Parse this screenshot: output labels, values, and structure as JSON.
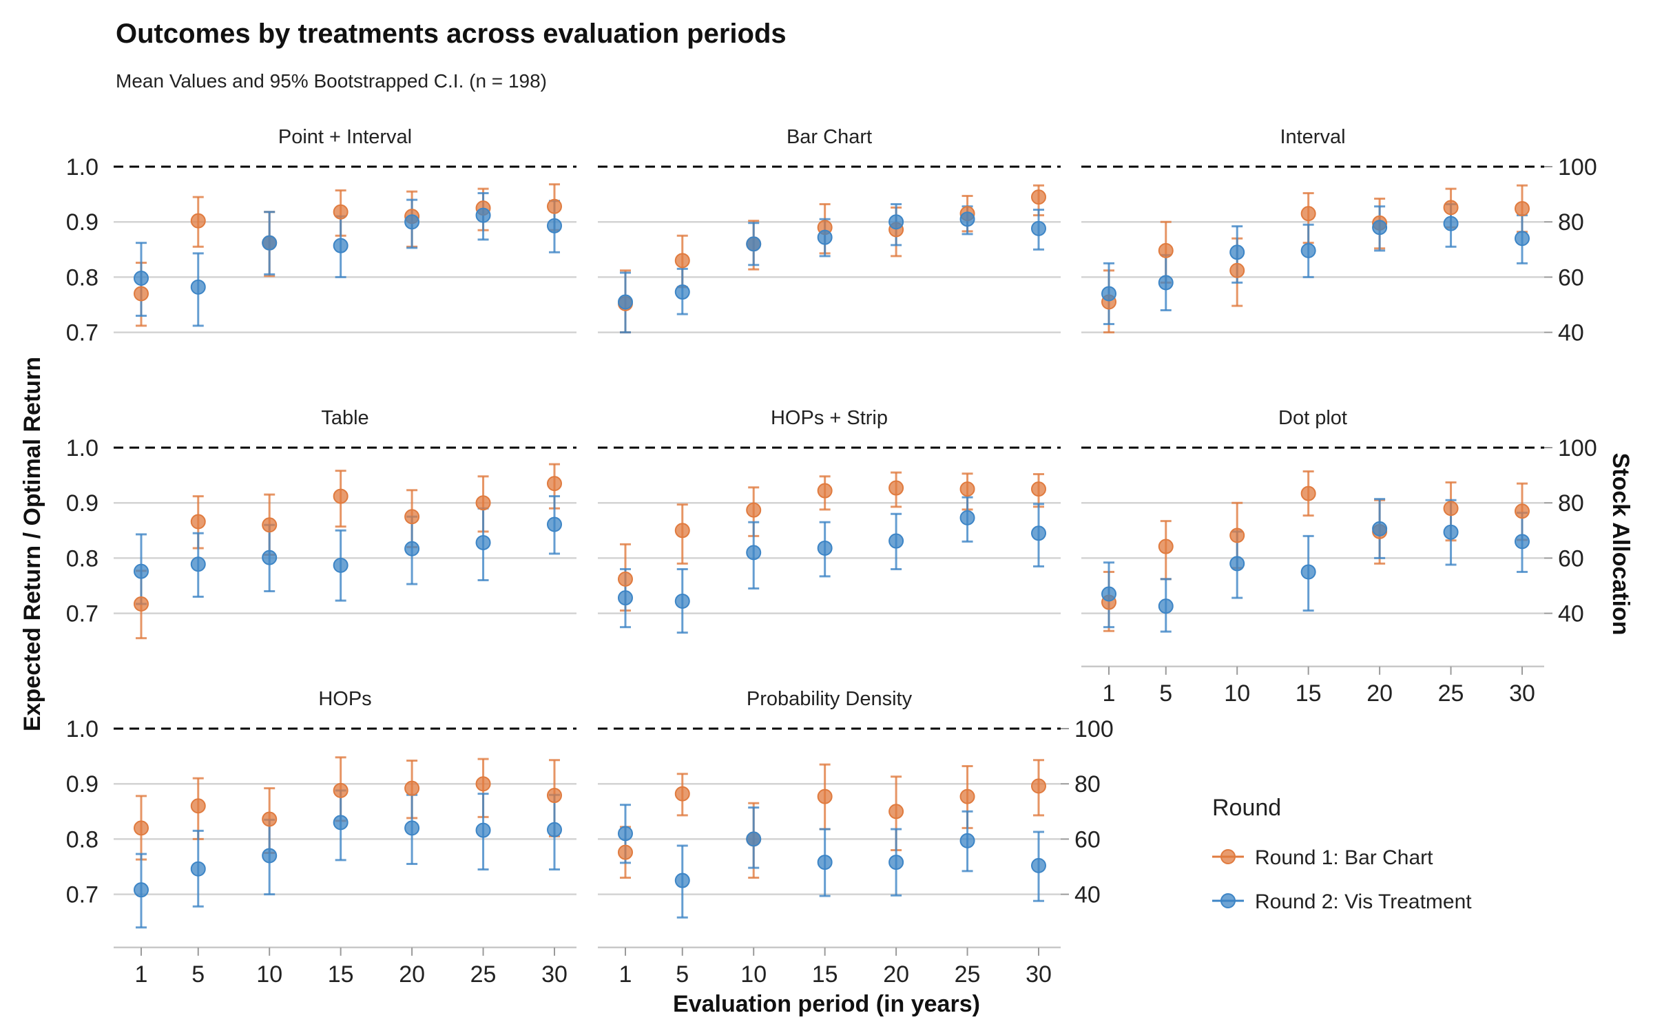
{
  "chart_data": {
    "type": "scatter",
    "title": "Outcomes by treatments across evaluation periods",
    "subtitle": "Mean Values and 95% Bootstrapped C.I. (n = 198)",
    "xlabel": "Evaluation period (in years)",
    "ylabel": "Expected Return / Optimal Return",
    "y2label": "Stock Allocation",
    "x": [
      1,
      5,
      10,
      15,
      20,
      25,
      30
    ],
    "x_tick_labels": [
      "1",
      "5",
      "10",
      "15",
      "20",
      "25",
      "30"
    ],
    "ylim": [
      0.6,
      1.02
    ],
    "y_ticks": [
      0.7,
      0.8,
      0.9,
      1.0
    ],
    "y_tick_labels": [
      "0.7",
      "0.8",
      "0.9",
      "1.0"
    ],
    "y2_ticks": [
      40,
      60,
      80,
      100
    ],
    "y2_tick_labels": [
      "40",
      "60",
      "80",
      "100"
    ],
    "reference_line": 1.0,
    "grid": true,
    "legend": {
      "title": "Round",
      "position": "right",
      "entries": [
        "Round 1: Bar Chart",
        "Round 2: Vis Treatment"
      ]
    },
    "colors": {
      "round1": "#E07B3F",
      "round2": "#3D85C6",
      "reference": "#000000",
      "grid": "#D3D3D3"
    },
    "panels": [
      {
        "name": "Point + Interval",
        "round1": {
          "y": [
            0.77,
            0.902,
            0.862,
            0.918,
            0.91,
            0.925,
            0.928
          ],
          "lo": [
            0.712,
            0.855,
            0.802,
            0.875,
            0.855,
            0.885,
            0.885
          ],
          "hi": [
            0.826,
            0.945,
            0.918,
            0.957,
            0.955,
            0.96,
            0.968
          ]
        },
        "round2": {
          "y": [
            0.798,
            0.782,
            0.862,
            0.857,
            0.9,
            0.912,
            0.893
          ],
          "lo": [
            0.73,
            0.712,
            0.805,
            0.8,
            0.853,
            0.868,
            0.845
          ],
          "hi": [
            0.862,
            0.843,
            0.918,
            0.91,
            0.94,
            0.952,
            0.938
          ]
        }
      },
      {
        "name": "Bar Chart",
        "round1": {
          "y": [
            0.752,
            0.83,
            0.86,
            0.89,
            0.886,
            0.915,
            0.945
          ],
          "lo": [
            0.7,
            0.782,
            0.814,
            0.843,
            0.838,
            0.883,
            0.912
          ],
          "hi": [
            0.812,
            0.875,
            0.902,
            0.932,
            0.926,
            0.947,
            0.966
          ]
        },
        "round2": {
          "y": [
            0.755,
            0.773,
            0.86,
            0.872,
            0.9,
            0.905,
            0.888
          ],
          "lo": [
            0.7,
            0.733,
            0.822,
            0.838,
            0.858,
            0.878,
            0.85
          ],
          "hi": [
            0.808,
            0.815,
            0.898,
            0.905,
            0.932,
            0.928,
            0.922
          ]
        }
      },
      {
        "name": "Interval",
        "round1": {
          "y": [
            0.755,
            0.848,
            0.812,
            0.915,
            0.898,
            0.926,
            0.924
          ],
          "lo": [
            0.7,
            0.79,
            0.748,
            0.862,
            0.852,
            0.89,
            0.882
          ],
          "hi": [
            0.812,
            0.9,
            0.87,
            0.952,
            0.942,
            0.96,
            0.966
          ]
        },
        "round2": {
          "y": [
            0.77,
            0.79,
            0.845,
            0.848,
            0.89,
            0.897,
            0.87
          ],
          "lo": [
            0.715,
            0.74,
            0.79,
            0.8,
            0.848,
            0.855,
            0.825
          ],
          "hi": [
            0.825,
            0.84,
            0.892,
            0.895,
            0.928,
            0.932,
            0.912
          ]
        }
      },
      {
        "name": "Table",
        "round1": {
          "y": [
            0.717,
            0.866,
            0.86,
            0.912,
            0.875,
            0.9,
            0.935
          ],
          "lo": [
            0.655,
            0.818,
            0.806,
            0.857,
            0.82,
            0.848,
            0.89
          ],
          "hi": [
            0.777,
            0.912,
            0.915,
            0.958,
            0.923,
            0.948,
            0.97
          ]
        },
        "round2": {
          "y": [
            0.776,
            0.789,
            0.801,
            0.787,
            0.817,
            0.828,
            0.861
          ],
          "lo": [
            0.717,
            0.73,
            0.74,
            0.723,
            0.753,
            0.76,
            0.808
          ],
          "hi": [
            0.843,
            0.845,
            0.86,
            0.85,
            0.875,
            0.89,
            0.912
          ]
        }
      },
      {
        "name": "HOPs + Strip",
        "round1": {
          "y": [
            0.762,
            0.85,
            0.887,
            0.922,
            0.927,
            0.925,
            0.925
          ],
          "lo": [
            0.705,
            0.79,
            0.84,
            0.888,
            0.893,
            0.888,
            0.893
          ],
          "hi": [
            0.825,
            0.897,
            0.928,
            0.948,
            0.955,
            0.953,
            0.952
          ]
        },
        "round2": {
          "y": [
            0.728,
            0.722,
            0.81,
            0.818,
            0.831,
            0.873,
            0.845
          ],
          "lo": [
            0.675,
            0.665,
            0.745,
            0.767,
            0.78,
            0.83,
            0.785
          ],
          "hi": [
            0.78,
            0.78,
            0.865,
            0.865,
            0.88,
            0.91,
            0.898
          ]
        }
      },
      {
        "name": "Dot plot",
        "round1": {
          "y": [
            0.72,
            0.821,
            0.841,
            0.917,
            0.848,
            0.89,
            0.885
          ],
          "lo": [
            0.668,
            0.762,
            0.782,
            0.877,
            0.79,
            0.832,
            0.833
          ],
          "hi": [
            0.775,
            0.867,
            0.9,
            0.957,
            0.905,
            0.937,
            0.935
          ]
        },
        "round2": {
          "y": [
            0.735,
            0.713,
            0.79,
            0.775,
            0.853,
            0.847,
            0.83
          ],
          "lo": [
            0.675,
            0.667,
            0.728,
            0.705,
            0.8,
            0.788,
            0.775
          ],
          "hi": [
            0.792,
            0.762,
            0.848,
            0.84,
            0.907,
            0.905,
            0.882
          ]
        }
      },
      {
        "name": "HOPs",
        "round1": {
          "y": [
            0.82,
            0.86,
            0.836,
            0.888,
            0.892,
            0.9,
            0.879
          ],
          "lo": [
            0.763,
            0.8,
            0.775,
            0.833,
            0.838,
            0.84,
            0.805
          ],
          "hi": [
            0.878,
            0.91,
            0.892,
            0.948,
            0.942,
            0.945,
            0.943
          ]
        },
        "round2": {
          "y": [
            0.708,
            0.746,
            0.77,
            0.83,
            0.82,
            0.816,
            0.817
          ],
          "lo": [
            0.64,
            0.678,
            0.7,
            0.762,
            0.755,
            0.745,
            0.745
          ],
          "hi": [
            0.773,
            0.815,
            0.835,
            0.888,
            0.88,
            0.882,
            0.88
          ]
        }
      },
      {
        "name": "Probability Density",
        "round1": {
          "y": [
            0.776,
            0.882,
            0.8,
            0.877,
            0.85,
            0.877,
            0.896
          ],
          "lo": [
            0.73,
            0.843,
            0.73,
            0.818,
            0.78,
            0.82,
            0.843
          ],
          "hi": [
            0.822,
            0.918,
            0.865,
            0.935,
            0.913,
            0.932,
            0.943
          ]
        },
        "round2": {
          "y": [
            0.81,
            0.725,
            0.8,
            0.758,
            0.758,
            0.797,
            0.752
          ],
          "lo": [
            0.757,
            0.658,
            0.748,
            0.697,
            0.698,
            0.742,
            0.688
          ],
          "hi": [
            0.862,
            0.788,
            0.857,
            0.818,
            0.818,
            0.85,
            0.813
          ]
        }
      }
    ]
  }
}
